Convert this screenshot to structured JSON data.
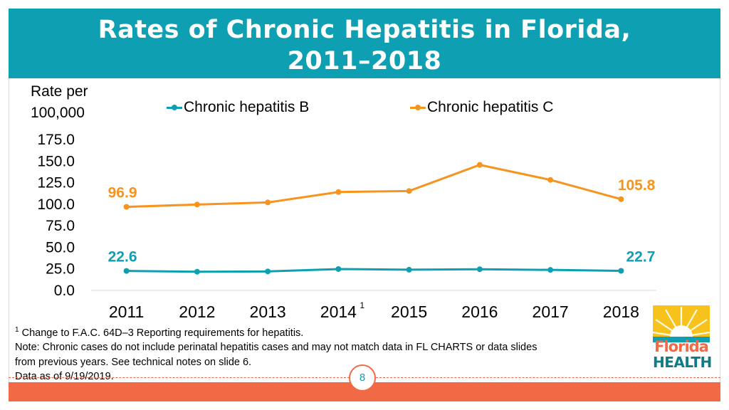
{
  "slide": {
    "title_line1": "Rates of Chronic Hepatitis in Florida,",
    "title_line2": "2011–2018",
    "page_number": "8"
  },
  "colors": {
    "teal": "#0ea0b2",
    "orange": "#f7941d",
    "accent": "#f26a45",
    "gold": "#f7c21b"
  },
  "chart_data": {
    "type": "line",
    "title": "Rates of Chronic Hepatitis in Florida, 2011–2018",
    "ylabel_line1": "Rate per",
    "ylabel_line2": "100,000",
    "xlabel": "",
    "categories": [
      "2011",
      "2012",
      "2013",
      "2014",
      "2015",
      "2016",
      "2017",
      "2018"
    ],
    "category_superscripts": {
      "2014": "1"
    },
    "yticks": [
      "175.0",
      "150.0",
      "125.0",
      "100.0",
      "75.0",
      "50.0",
      "25.0",
      "0.0"
    ],
    "ylim": [
      0,
      175
    ],
    "legend_position": "top",
    "series": [
      {
        "name": "Chronic hepatitis B",
        "color": "#0ea0b2",
        "values": [
          22.6,
          21.7,
          22.0,
          24.8,
          24.0,
          24.6,
          23.8,
          22.7
        ],
        "labels": [
          {
            "index": 0,
            "text": "22.6"
          },
          {
            "index": 7,
            "text": "22.7"
          }
        ]
      },
      {
        "name": "Chronic hepatitis C",
        "color": "#f7941d",
        "values": [
          96.9,
          99.6,
          102.0,
          114.1,
          115.3,
          145.6,
          128.2,
          105.8
        ],
        "labels": [
          {
            "index": 0,
            "text": "96.9"
          },
          {
            "index": 7,
            "text": "105.8"
          }
        ]
      }
    ]
  },
  "footnotes": {
    "note1_marker": "1",
    "note1_text": " Change to F.A.C. 64D–3 Reporting requirements for hepatitis.",
    "note2": "Note: Chronic cases do not include perinatal hepatitis cases and may not match data in FL CHARTS or data slides",
    "note3": "from previous years. See technical notes on slide 6.",
    "note4": "Data as of 9/19/2019."
  },
  "logo": {
    "word1": "Florida",
    "word2": "HEALTH"
  }
}
